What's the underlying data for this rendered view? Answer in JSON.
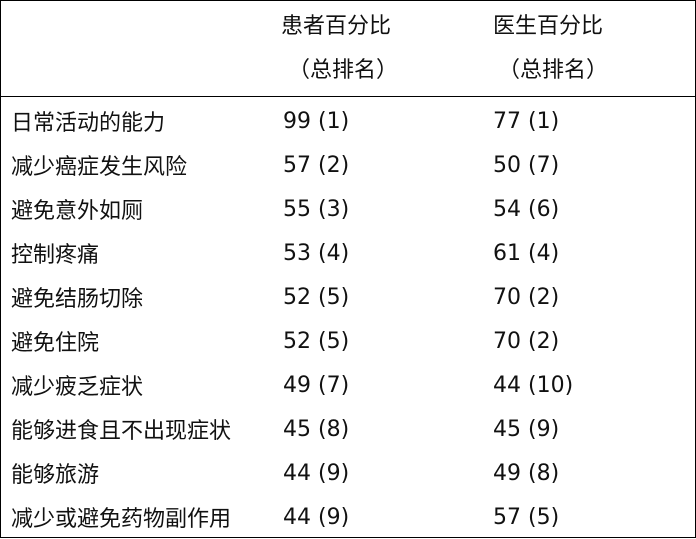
{
  "table": {
    "headers": {
      "col1": "",
      "col2_line1": "患者百分比",
      "col2_line2": "（总排名）",
      "col3_line1": "医生百分比",
      "col3_line2": "（总排名）"
    },
    "rows": [
      {
        "label": "日常活动的能力",
        "patient": "99 (1)",
        "doctor": "77 (1)"
      },
      {
        "label": "减少癌症发生风险",
        "patient": "57 (2)",
        "doctor": "50 (7)"
      },
      {
        "label": "避免意外如厕",
        "patient": "55 (3)",
        "doctor": "54 (6)"
      },
      {
        "label": "控制疼痛",
        "patient": "53 (4)",
        "doctor": "61 (4)"
      },
      {
        "label": "避免结肠切除",
        "patient": "52 (5)",
        "doctor": "70 (2)"
      },
      {
        "label": "避免住院",
        "patient": "52 (5)",
        "doctor": "70 (2)"
      },
      {
        "label": "减少疲乏症状",
        "patient": "49 (7)",
        "doctor": "44 (10)"
      },
      {
        "label": "能够进食且不出现症状",
        "patient": "45 (8)",
        "doctor": "45 (9)"
      },
      {
        "label": "能够旅游",
        "patient": "44 (9)",
        "doctor": "49 (8)"
      },
      {
        "label": "减少或避免药物副作用",
        "patient": "44 (9)",
        "doctor": "57 (5)"
      }
    ]
  }
}
